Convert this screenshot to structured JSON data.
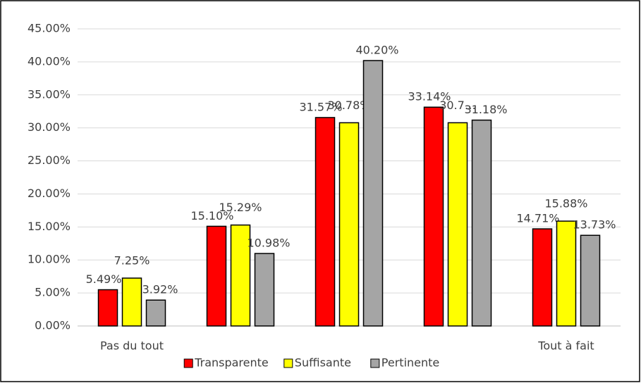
{
  "chart_data": {
    "type": "bar",
    "categories": [
      "Pas du tout",
      null,
      null,
      null,
      "Tout à fait"
    ],
    "series": [
      {
        "name": "Transparente",
        "color": "#ff0000",
        "values": [
          5.49,
          15.1,
          31.57,
          33.14,
          14.71
        ],
        "value_labels": [
          "5.49%",
          "15.10%",
          "31.57%",
          "33.14%",
          "14.71%"
        ]
      },
      {
        "name": "Suffisante",
        "color": "#ffff00",
        "values": [
          7.25,
          15.29,
          30.78,
          30.78,
          15.88
        ],
        "value_labels": [
          "7.25%",
          "15.29%",
          "30.78%",
          "30.7…",
          "15.88%"
        ]
      },
      {
        "name": "Pertinente",
        "color": "#a5a5a5",
        "values": [
          3.92,
          10.98,
          40.2,
          31.18,
          13.73
        ],
        "value_labels": [
          "3.92%",
          "10.98%",
          "40.20%",
          "31.18%",
          "13.73%"
        ]
      }
    ],
    "ylim": [
      0,
      45
    ],
    "yticks": [
      {
        "value": 0,
        "label": "0.00%"
      },
      {
        "value": 5,
        "label": "5.00%"
      },
      {
        "value": 10,
        "label": "10.00%"
      },
      {
        "value": 15,
        "label": "15.00%"
      },
      {
        "value": 20,
        "label": "20.00%"
      },
      {
        "value": 25,
        "label": "25.00%"
      },
      {
        "value": 30,
        "label": "30.00%"
      },
      {
        "value": 35,
        "label": "35.00%"
      },
      {
        "value": 40,
        "label": "40.00%"
      },
      {
        "value": 45,
        "label": "45.00%"
      }
    ],
    "grid": true,
    "legend": "bottom"
  }
}
